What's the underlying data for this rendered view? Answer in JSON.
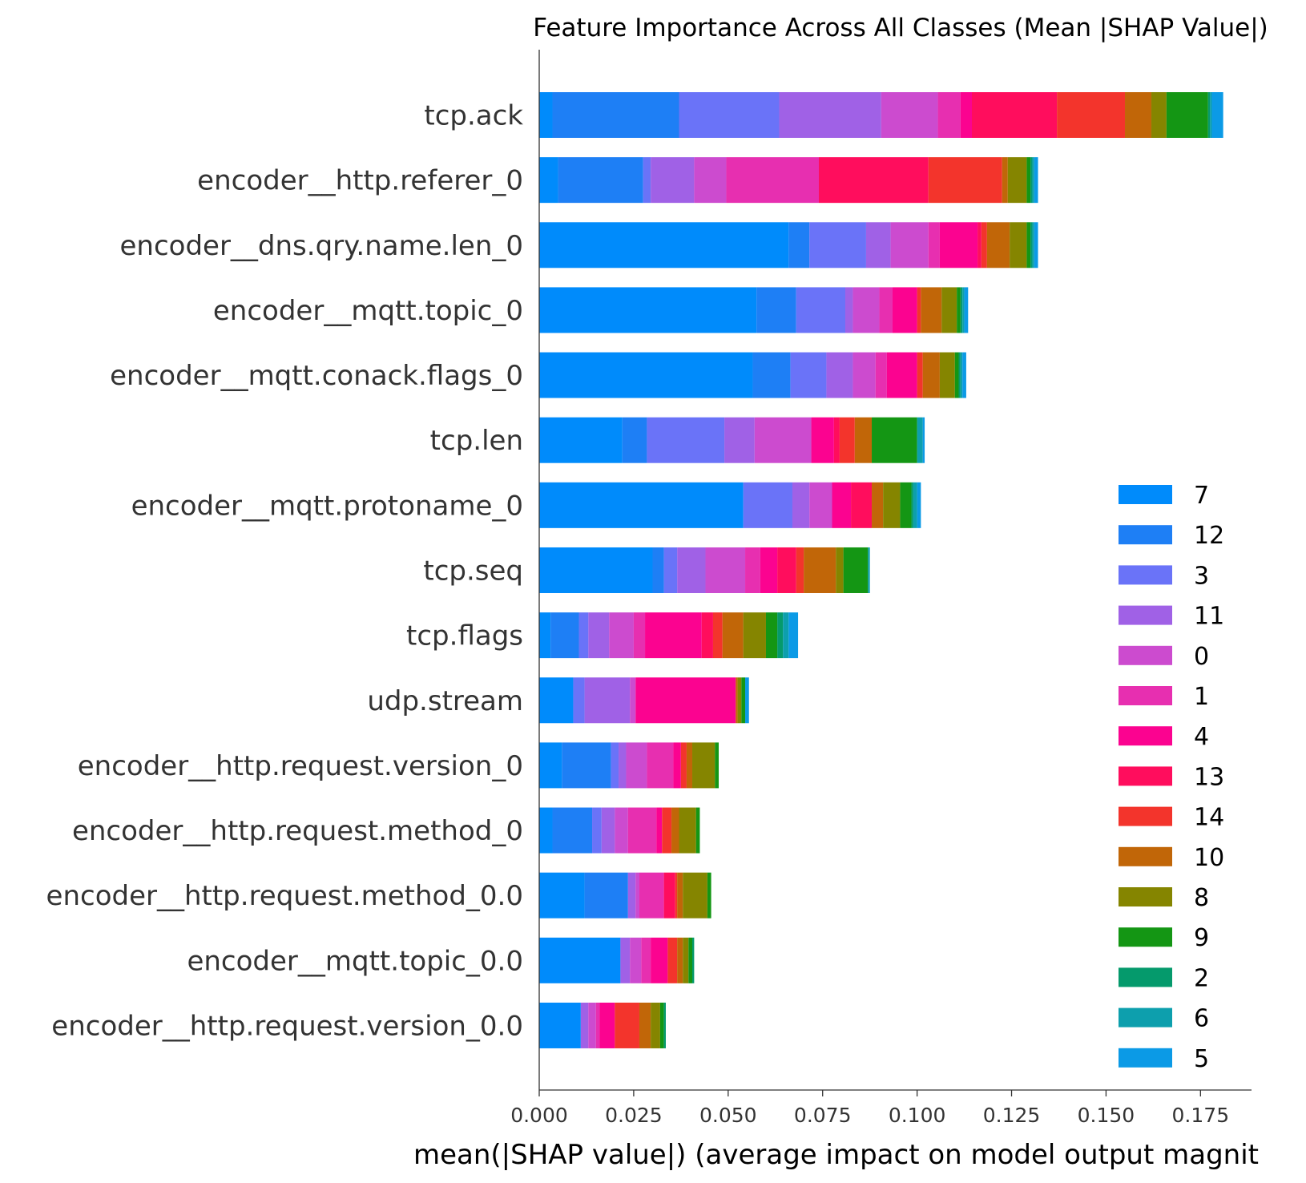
{
  "chart_data": {
    "type": "bar",
    "orientation": "horizontal",
    "stacked": true,
    "title": "Feature Importance Across All Classes (Mean |SHAP Value|)",
    "xlabel": "mean(|SHAP value|) (average impact on model output magnit",
    "ylabel": "",
    "xlim": [
      0,
      0.1885
    ],
    "xticks": [
      "0.000",
      "0.025",
      "0.050",
      "0.075",
      "0.100",
      "0.125",
      "0.150",
      "0.175"
    ],
    "legend_position": "right",
    "grid": false,
    "categories": [
      "tcp.ack",
      "encoder__http.referer_0",
      "encoder__dns.qry.name.len_0",
      "encoder__mqtt.topic_0",
      "encoder__mqtt.conack.flags_0",
      "tcp.len",
      "encoder__mqtt.protoname_0",
      "tcp.seq",
      "tcp.flags",
      "udp.stream",
      "encoder__http.request.version_0",
      "encoder__http.request.method_0",
      "encoder__http.request.method_0.0",
      "encoder__mqtt.topic_0.0",
      "encoder__http.request.version_0.0"
    ],
    "series": [
      {
        "name": "7",
        "color": "#008bfb",
        "values": [
          0.0035,
          0.005,
          0.066,
          0.0575,
          0.0565,
          0.022,
          0.054,
          0.03,
          0.003,
          0.009,
          0.006,
          0.0035,
          0.012,
          0.0215,
          0.011
        ]
      },
      {
        "name": "12",
        "color": "#1e7ff5",
        "values": [
          0.0335,
          0.0225,
          0.0055,
          0.0105,
          0.01,
          0.0065,
          0.0,
          0.003,
          0.0075,
          0.0,
          0.013,
          0.0105,
          0.0115,
          0.0,
          0.0
        ]
      },
      {
        "name": "3",
        "color": "#6a73f8",
        "values": [
          0.0265,
          0.002,
          0.015,
          0.013,
          0.0095,
          0.0205,
          0.013,
          0.0035,
          0.0025,
          0.003,
          0.002,
          0.0025,
          0.0,
          0.0,
          0.0
        ]
      },
      {
        "name": "11",
        "color": "#a061e6",
        "values": [
          0.027,
          0.0115,
          0.0065,
          0.002,
          0.007,
          0.008,
          0.0045,
          0.0075,
          0.0055,
          0.012,
          0.002,
          0.0035,
          0.002,
          0.0025,
          0.002
        ]
      },
      {
        "name": "0",
        "color": "#cc4bcf",
        "values": [
          0.015,
          0.0085,
          0.01,
          0.007,
          0.006,
          0.015,
          0.006,
          0.0105,
          0.0065,
          0.0015,
          0.0055,
          0.0035,
          0.001,
          0.003,
          0.002
        ]
      },
      {
        "name": "1",
        "color": "#e72fb0",
        "values": [
          0.006,
          0.0245,
          0.003,
          0.0035,
          0.003,
          0.0,
          0.0,
          0.004,
          0.003,
          0.0,
          0.007,
          0.0075,
          0.0065,
          0.0025,
          0.001
        ]
      },
      {
        "name": "4",
        "color": "#fb0390",
        "values": [
          0.003,
          0.0,
          0.01,
          0.0065,
          0.008,
          0.006,
          0.005,
          0.0045,
          0.015,
          0.0265,
          0.002,
          0.0015,
          0.0,
          0.0045,
          0.004
        ]
      },
      {
        "name": "13",
        "color": "#ff0d5d",
        "values": [
          0.0225,
          0.029,
          0.001,
          0.0,
          0.0,
          0.0015,
          0.0055,
          0.005,
          0.003,
          0.0,
          0.0,
          0.0,
          0.003,
          0.0,
          0.0
        ]
      },
      {
        "name": "14",
        "color": "#f3342c",
        "values": [
          0.018,
          0.0195,
          0.0015,
          0.001,
          0.0015,
          0.004,
          0.0,
          0.002,
          0.0025,
          0.0,
          0.0015,
          0.0025,
          0.0005,
          0.0025,
          0.0065
        ]
      },
      {
        "name": "10",
        "color": "#c16608",
        "values": [
          0.007,
          0.0015,
          0.006,
          0.0055,
          0.0045,
          0.0045,
          0.003,
          0.0085,
          0.0055,
          0.0005,
          0.0015,
          0.002,
          0.0015,
          0.0015,
          0.003
        ]
      },
      {
        "name": "8",
        "color": "#858500",
        "values": [
          0.004,
          0.005,
          0.0045,
          0.004,
          0.004,
          0.0,
          0.0045,
          0.002,
          0.006,
          0.001,
          0.006,
          0.0045,
          0.0065,
          0.0015,
          0.0025
        ]
      },
      {
        "name": "9",
        "color": "#149614",
        "values": [
          0.011,
          0.001,
          0.001,
          0.001,
          0.001,
          0.012,
          0.003,
          0.0065,
          0.003,
          0.001,
          0.001,
          0.001,
          0.001,
          0.001,
          0.001
        ]
      },
      {
        "name": "2",
        "color": "#059a6c",
        "values": [
          0.0005,
          0.0005,
          0.0005,
          0.0005,
          0.0005,
          0.0,
          0.0005,
          0.0,
          0.0015,
          0.0,
          0.0,
          0.0,
          0.0,
          0.0005,
          0.0005
        ]
      },
      {
        "name": "6",
        "color": "#0d9fad",
        "values": [
          0.0005,
          0.0005,
          0.0005,
          0.0005,
          0.0005,
          0.0015,
          0.001,
          0.0005,
          0.0015,
          0.0,
          0.0,
          0.0,
          0.0,
          0.0,
          0.0
        ]
      },
      {
        "name": "5",
        "color": "#0b9ae6",
        "values": [
          0.003,
          0.001,
          0.001,
          0.001,
          0.001,
          0.0005,
          0.001,
          0.0,
          0.0025,
          0.001,
          0.0,
          0.0,
          0.0,
          0.0,
          0.0
        ]
      }
    ]
  }
}
